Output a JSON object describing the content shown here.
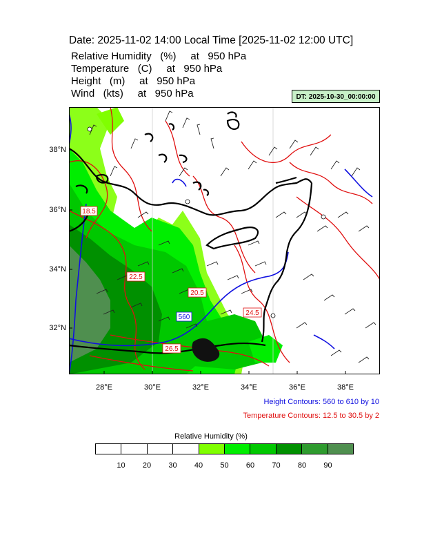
{
  "header": {
    "title": "Date: 2025-11-02  14:00 Local Time [2025-11-02  12:00 UTC]",
    "variables": [
      "Relative Humidity   (%)     at   950 hPa",
      "Temperature   (C)     at   950 hPa",
      "Height   (m)     at   950 hPa",
      "Wind   (kts)     at   950 hPa"
    ],
    "dt_badge": "DT: 2025-10-30_00:00:00"
  },
  "map": {
    "lat_labels": [
      "38°N",
      "36°N",
      "34°N",
      "32°N"
    ],
    "lon_labels": [
      "28°E",
      "30°E",
      "32°E",
      "34°E",
      "36°E",
      "38°E"
    ],
    "contour_labels": {
      "temp_a": "18.5",
      "temp_b": "22.5",
      "temp_c": "20.5",
      "temp_d": "24.5",
      "temp_e": "26.5",
      "height_a": "560"
    },
    "colors": {
      "coast": "#000000",
      "temperature": "#e01010",
      "height": "#1010e0"
    }
  },
  "legend": {
    "height_contours": "Height Contours: 560 to 610 by 10",
    "temperature_contours": "Temperature Contours: 12.5 to 30.5 by 2",
    "height_color": "#1010e0",
    "temperature_color": "#e01010"
  },
  "colorbar": {
    "title": "Relative Humidity  (%)",
    "labels": [
      "10",
      "20",
      "30",
      "40",
      "50",
      "60",
      "70",
      "80",
      "90"
    ],
    "colors": [
      "#ffffff",
      "#ffffff",
      "#ffffff",
      "#ffffff",
      "#80ff00",
      "#00ee00",
      "#00c800",
      "#009000",
      "#2e9b2e",
      "#4f8f4f"
    ]
  }
}
